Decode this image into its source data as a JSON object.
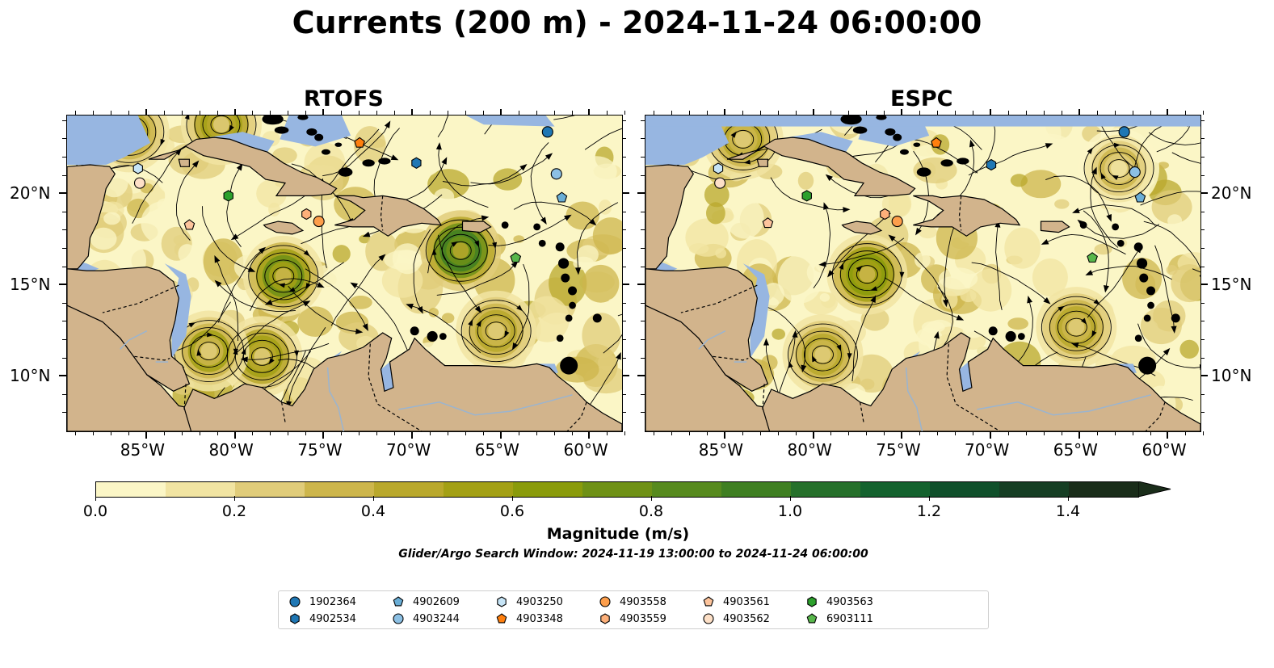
{
  "title": "Currents (200 m) - 2024-11-24 06:00:00",
  "panels": [
    {
      "title": "RTOFS"
    },
    {
      "title": "ESPC"
    }
  ],
  "axes": {
    "x_ticks": [
      "85°W",
      "80°W",
      "75°W",
      "70°W",
      "65°W",
      "60°W"
    ],
    "y_ticks": [
      "20°N",
      "15°N",
      "10°N"
    ]
  },
  "colorbar": {
    "label": "Magnitude (m/s)",
    "ticks": [
      "0.0",
      "0.2",
      "0.4",
      "0.6",
      "0.8",
      "1.0",
      "1.2",
      "1.4"
    ],
    "range": [
      0.0,
      1.5
    ],
    "extend": "max",
    "colors": [
      "#fbf6c6",
      "#f1e4a2",
      "#e0cc7a",
      "#cdb64c",
      "#b9a82c",
      "#a3a015",
      "#8a9b0b",
      "#6f9116",
      "#578a1e",
      "#3f7f22",
      "#26702b",
      "#14622e",
      "#10502b",
      "#163e24",
      "#1a2d1a"
    ]
  },
  "search_window": "Glider/Argo Search Window: 2024-11-19 13:00:00 to 2024-11-24 06:00:00",
  "colors": {
    "land": "#d2b48c",
    "ocean_mask": "#97b6e1",
    "streamline": "#000000"
  },
  "legend": {
    "items": [
      {
        "id": "1902364",
        "marker": "circle",
        "color": "#1f77b4"
      },
      {
        "id": "4902534",
        "marker": "hexagon",
        "color": "#1f77b4"
      },
      {
        "id": "4902609",
        "marker": "pentagon",
        "color": "#6aaed6"
      },
      {
        "id": "4903244",
        "marker": "circle",
        "color": "#8cc0e4"
      },
      {
        "id": "4903250",
        "marker": "hexagon",
        "color": "#c6e4f6"
      },
      {
        "id": "4903348",
        "marker": "pentagon",
        "color": "#ff7f0e"
      },
      {
        "id": "4903558",
        "marker": "circle",
        "color": "#fd9e4b"
      },
      {
        "id": "4903559",
        "marker": "hexagon",
        "color": "#fdb07a"
      },
      {
        "id": "4903561",
        "marker": "pentagon",
        "color": "#fdc49c"
      },
      {
        "id": "4903562",
        "marker": "circle",
        "color": "#fde0c7"
      },
      {
        "id": "4903563",
        "marker": "hexagon",
        "color": "#2ca02c"
      },
      {
        "id": "6903111",
        "marker": "pentagon",
        "color": "#58b74b"
      }
    ]
  },
  "floats": {
    "RTOFS": [
      {
        "id": "1902364",
        "lon": -62.4,
        "lat": 23.4
      },
      {
        "id": "4902534",
        "lon": -69.8,
        "lat": 21.7
      },
      {
        "id": "4903348",
        "lon": -73.0,
        "lat": 22.8
      },
      {
        "id": "4903244",
        "lon": -61.9,
        "lat": 21.1
      },
      {
        "id": "4902609",
        "lon": -61.6,
        "lat": 19.8
      },
      {
        "id": "4903250",
        "lon": -85.5,
        "lat": 21.4
      },
      {
        "id": "4903562",
        "lon": -85.4,
        "lat": 20.6
      },
      {
        "id": "4903563",
        "lon": -80.4,
        "lat": 19.9
      },
      {
        "id": "4903561",
        "lon": -82.6,
        "lat": 18.3
      },
      {
        "id": "4903559",
        "lon": -76.0,
        "lat": 18.9
      },
      {
        "id": "4903558",
        "lon": -75.3,
        "lat": 18.5
      },
      {
        "id": "6903111",
        "lon": -64.2,
        "lat": 16.5
      }
    ],
    "ESPC": [
      {
        "id": "1902364",
        "lon": -62.5,
        "lat": 23.4
      },
      {
        "id": "4902534",
        "lon": -70.0,
        "lat": 21.6
      },
      {
        "id": "4903348",
        "lon": -73.1,
        "lat": 22.8
      },
      {
        "id": "4903244",
        "lon": -61.9,
        "lat": 21.2
      },
      {
        "id": "4902609",
        "lon": -61.6,
        "lat": 19.8
      },
      {
        "id": "4903250",
        "lon": -85.4,
        "lat": 21.4
      },
      {
        "id": "4903562",
        "lon": -85.3,
        "lat": 20.6
      },
      {
        "id": "4903563",
        "lon": -80.4,
        "lat": 19.9
      },
      {
        "id": "4903561",
        "lon": -82.6,
        "lat": 18.4
      },
      {
        "id": "4903559",
        "lon": -76.0,
        "lat": 18.9
      },
      {
        "id": "4903558",
        "lon": -75.3,
        "lat": 18.5
      },
      {
        "id": "6903111",
        "lon": -64.3,
        "lat": 16.5
      }
    ]
  },
  "eddies": {
    "RTOFS": [
      {
        "lon": -77.3,
        "lat": 15.5,
        "speed": 0.75
      },
      {
        "lon": -67.3,
        "lat": 16.9,
        "speed": 0.95
      },
      {
        "lon": -78.5,
        "lat": 11.1,
        "speed": 0.6
      },
      {
        "lon": -81.5,
        "lat": 11.4,
        "speed": 0.5
      },
      {
        "lon": -65.3,
        "lat": 12.5,
        "speed": 0.45
      },
      {
        "lon": -86.0,
        "lat": 23.4,
        "speed": 0.4
      },
      {
        "lon": -80.8,
        "lat": 23.8,
        "speed": 0.55
      }
    ],
    "ESPC": [
      {
        "lon": -77.0,
        "lat": 15.6,
        "speed": 0.7
      },
      {
        "lon": -79.5,
        "lat": 11.2,
        "speed": 0.45
      },
      {
        "lon": -65.2,
        "lat": 12.7,
        "speed": 0.4
      },
      {
        "lon": -84.0,
        "lat": 23.0,
        "speed": 0.4
      },
      {
        "lon": -62.8,
        "lat": 21.4,
        "speed": 0.35
      }
    ]
  }
}
